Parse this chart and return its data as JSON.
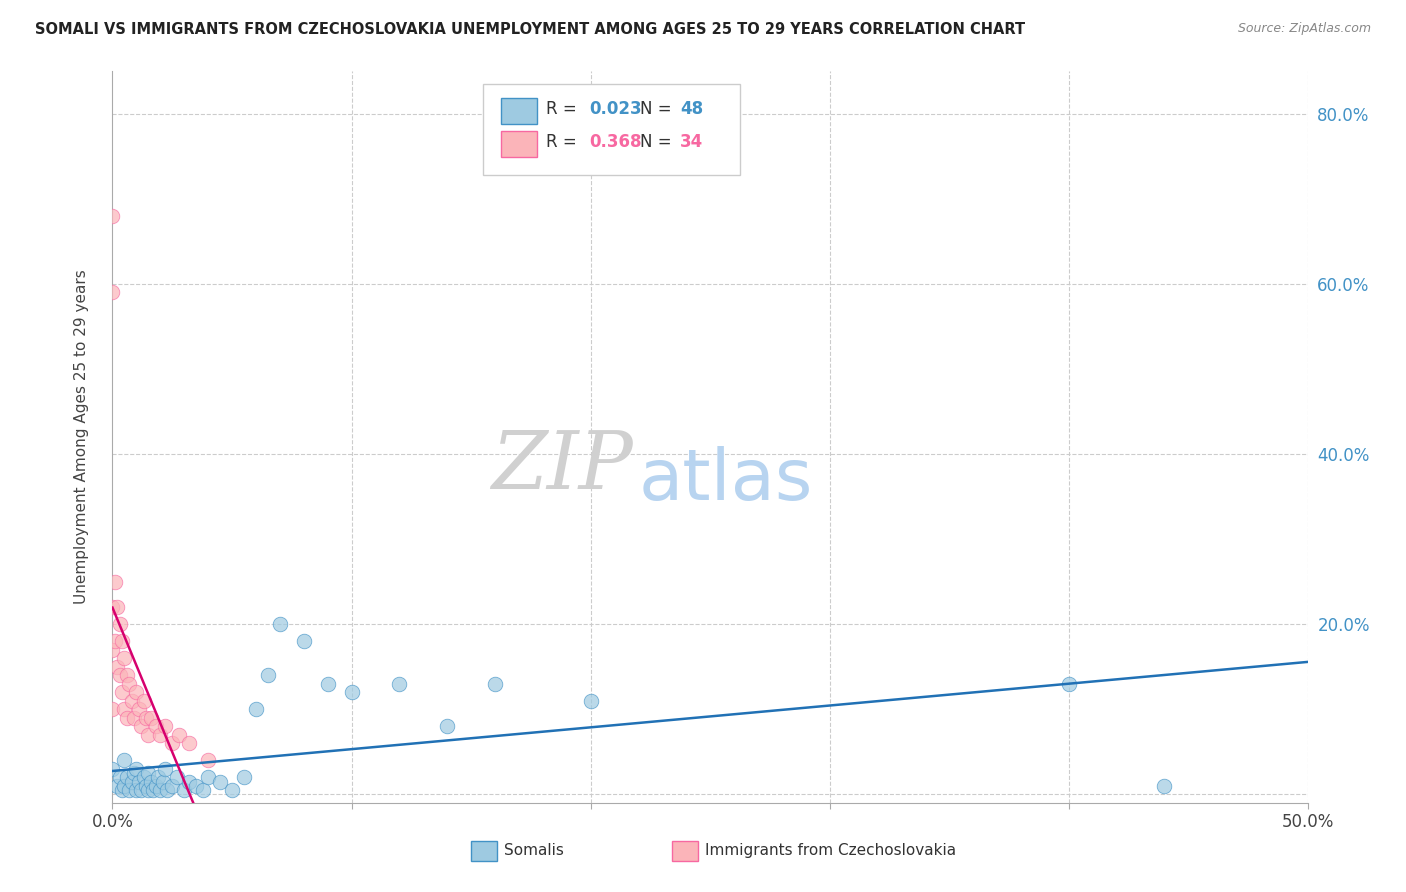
{
  "title": "SOMALI VS IMMIGRANTS FROM CZECHOSLOVAKIA UNEMPLOYMENT AMONG AGES 25 TO 29 YEARS CORRELATION CHART",
  "source": "Source: ZipAtlas.com",
  "ylabel": "Unemployment Among Ages 25 to 29 years",
  "xlim": [
    0,
    0.5
  ],
  "ylim": [
    -0.01,
    0.85
  ],
  "x_ticks": [
    0.0,
    0.1,
    0.2,
    0.3,
    0.4,
    0.5
  ],
  "x_tick_labels": [
    "0.0%",
    "",
    "",
    "",
    "",
    "50.0%"
  ],
  "y_ticks": [
    0.0,
    0.2,
    0.4,
    0.6,
    0.8
  ],
  "y_tick_labels": [
    "",
    "20.0%",
    "40.0%",
    "60.0%",
    "80.0%"
  ],
  "legend_r1": "0.023",
  "legend_n1": "48",
  "legend_r2": "0.368",
  "legend_n2": "34",
  "somali_color": "#9ecae1",
  "somali_edge": "#4292c6",
  "somali_line_color": "#2171b5",
  "czech_color": "#fbb4b9",
  "czech_edge": "#f768a1",
  "czech_line_color": "#d6006e",
  "legend_color1": "#4292c6",
  "legend_color2": "#f768a1",
  "watermark_ZIP_color": "#d0d0d0",
  "watermark_atlas_color": "#b8d4f0",
  "grid_color": "#cccccc",
  "somali_x": [
    0.0,
    0.002,
    0.003,
    0.004,
    0.005,
    0.005,
    0.006,
    0.007,
    0.008,
    0.009,
    0.01,
    0.01,
    0.011,
    0.012,
    0.013,
    0.014,
    0.015,
    0.015,
    0.016,
    0.017,
    0.018,
    0.019,
    0.02,
    0.021,
    0.022,
    0.023,
    0.025,
    0.027,
    0.03,
    0.032,
    0.035,
    0.038,
    0.04,
    0.045,
    0.05,
    0.055,
    0.06,
    0.065,
    0.07,
    0.08,
    0.09,
    0.1,
    0.12,
    0.14,
    0.16,
    0.2,
    0.4,
    0.44
  ],
  "somali_y": [
    0.03,
    0.01,
    0.02,
    0.005,
    0.04,
    0.01,
    0.02,
    0.005,
    0.015,
    0.025,
    0.005,
    0.03,
    0.015,
    0.005,
    0.02,
    0.01,
    0.025,
    0.005,
    0.015,
    0.005,
    0.01,
    0.02,
    0.005,
    0.015,
    0.03,
    0.005,
    0.01,
    0.02,
    0.005,
    0.015,
    0.01,
    0.005,
    0.02,
    0.015,
    0.005,
    0.02,
    0.1,
    0.14,
    0.2,
    0.18,
    0.13,
    0.12,
    0.13,
    0.08,
    0.13,
    0.11,
    0.13,
    0.01
  ],
  "czech_x": [
    0.0,
    0.0,
    0.0,
    0.0,
    0.0,
    0.001,
    0.001,
    0.002,
    0.002,
    0.003,
    0.003,
    0.004,
    0.004,
    0.005,
    0.005,
    0.006,
    0.006,
    0.007,
    0.008,
    0.009,
    0.01,
    0.011,
    0.012,
    0.013,
    0.014,
    0.015,
    0.016,
    0.018,
    0.02,
    0.022,
    0.025,
    0.028,
    0.032,
    0.04
  ],
  "czech_y": [
    0.68,
    0.59,
    0.22,
    0.17,
    0.1,
    0.25,
    0.18,
    0.22,
    0.15,
    0.2,
    0.14,
    0.18,
    0.12,
    0.16,
    0.1,
    0.14,
    0.09,
    0.13,
    0.11,
    0.09,
    0.12,
    0.1,
    0.08,
    0.11,
    0.09,
    0.07,
    0.09,
    0.08,
    0.07,
    0.08,
    0.06,
    0.07,
    0.06,
    0.04
  ],
  "czech_trend_x0": 0.0,
  "czech_trend_x1": 0.3,
  "czech_trend_solid_end": 0.04,
  "somali_trend_x0": 0.0,
  "somali_trend_x1": 0.5
}
